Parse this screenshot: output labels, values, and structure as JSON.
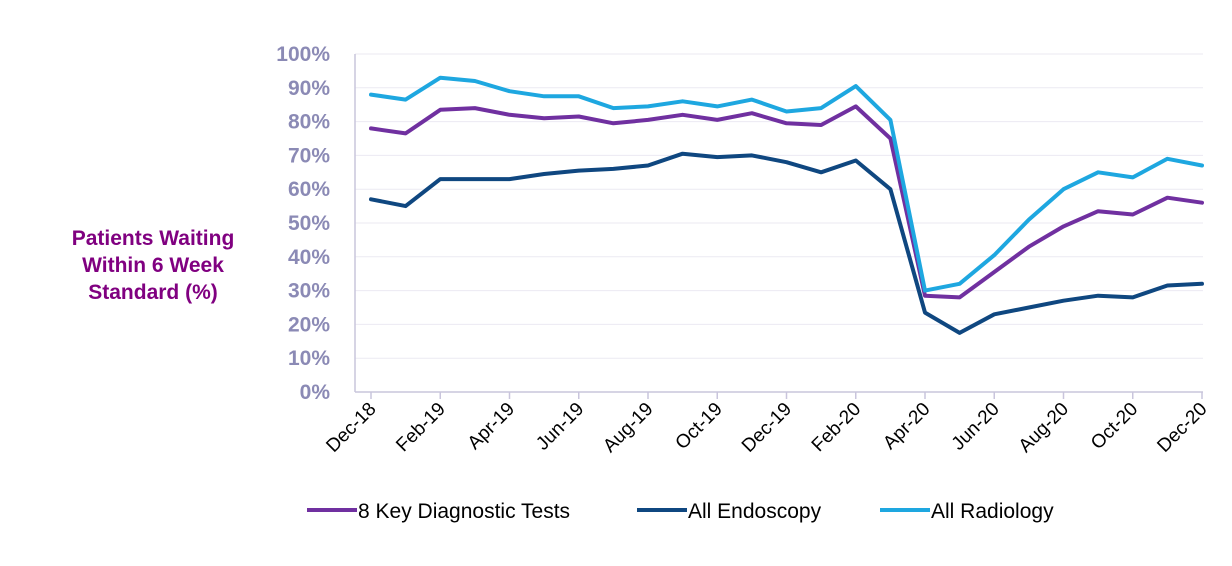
{
  "chart_data": {
    "type": "line",
    "title": "",
    "ylabel_lines": [
      "Patients Waiting",
      "Within 6 Week",
      "Standard (%)"
    ],
    "xlabel": "",
    "ylim": [
      0,
      100
    ],
    "yticks": [
      {
        "value": 0,
        "label": "0%"
      },
      {
        "value": 10,
        "label": "10%"
      },
      {
        "value": 20,
        "label": "20%"
      },
      {
        "value": 30,
        "label": "30%"
      },
      {
        "value": 40,
        "label": "40%"
      },
      {
        "value": 50,
        "label": "50%"
      },
      {
        "value": 60,
        "label": "60%"
      },
      {
        "value": 70,
        "label": "70%"
      },
      {
        "value": 80,
        "label": "80%"
      },
      {
        "value": 90,
        "label": "90%"
      },
      {
        "value": 100,
        "label": "100%"
      }
    ],
    "categories": [
      "Dec-18",
      "Jan-19",
      "Feb-19",
      "Mar-19",
      "Apr-19",
      "May-19",
      "Jun-19",
      "Jul-19",
      "Aug-19",
      "Sep-19",
      "Oct-19",
      "Nov-19",
      "Dec-19",
      "Jan-20",
      "Feb-20",
      "Mar-20",
      "Apr-20",
      "May-20",
      "Jun-20",
      "Jul-20",
      "Aug-20",
      "Sep-20",
      "Oct-20",
      "Nov-20",
      "Dec-20"
    ],
    "xtick_labels": [
      "Dec-18",
      "Feb-19",
      "Apr-19",
      "Jun-19",
      "Aug-19",
      "Oct-19",
      "Dec-19",
      "Feb-20",
      "Apr-20",
      "Jun-20",
      "Aug-20",
      "Oct-20",
      "Dec-20"
    ],
    "grid": true,
    "legend_position": "bottom",
    "series": [
      {
        "name": "8 Key Diagnostic Tests",
        "color": "#7030a0",
        "values": [
          78,
          76.5,
          83.5,
          84,
          82,
          81,
          81.5,
          79.5,
          80.5,
          82,
          80.5,
          82.5,
          79.5,
          79,
          84.5,
          75,
          28.5,
          28,
          35.5,
          43,
          49,
          53.5,
          52.5,
          57.5,
          56
        ]
      },
      {
        "name": "All Endoscopy",
        "color": "#0f4780",
        "values": [
          57,
          55,
          63,
          63,
          63,
          64.5,
          65.5,
          66,
          67,
          70.5,
          69.5,
          70,
          68,
          65,
          68.5,
          60,
          23.5,
          17.5,
          23,
          25,
          27,
          28.5,
          28,
          31.5,
          32
        ]
      },
      {
        "name": "All Radiology",
        "color": "#1ea7e0",
        "values": [
          88,
          86.5,
          93,
          92,
          89,
          87.5,
          87.5,
          84,
          84.5,
          86,
          84.5,
          86.5,
          83,
          84,
          90.5,
          80.5,
          30,
          32,
          40.5,
          51,
          60,
          65,
          63.5,
          69,
          67
        ]
      }
    ]
  },
  "colors": {
    "ylabel": "#800080",
    "tick_labels": "#8b8ab5",
    "axis": "#c9c5dc",
    "grid": "#ebeaf2",
    "legend_text": "#000000"
  }
}
